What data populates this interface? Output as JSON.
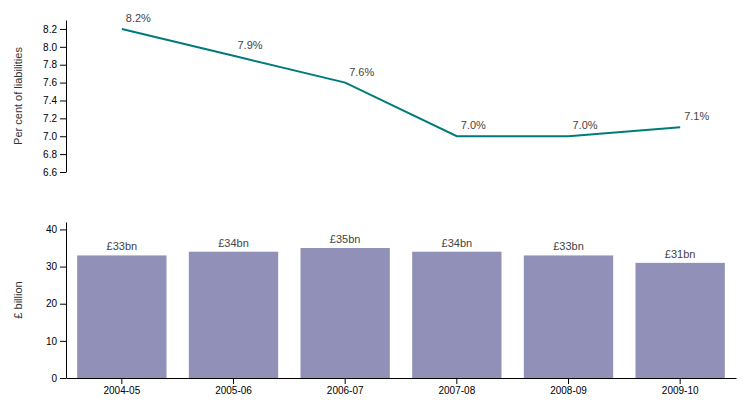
{
  "chart_data": [
    {
      "type": "line",
      "categories": [
        "2004-05",
        "2005-06",
        "2006-07",
        "2007-08",
        "2008-09",
        "2009-10"
      ],
      "values": [
        8.2,
        7.9,
        7.6,
        7.0,
        7.0,
        7.1
      ],
      "value_labels": [
        "8.2%",
        "7.9%",
        "7.6%",
        "7.0%",
        "7.0%",
        "7.1%"
      ],
      "data_labels": true,
      "color": "#007b7b",
      "ylabel": "Per cent of liabilities",
      "ylim": [
        6.6,
        8.3
      ],
      "yticks": [
        6.6,
        6.8,
        {
          "value": 7.0,
          "label": "7.0"
        },
        7.2,
        7.4,
        7.6,
        7.8,
        {
          "value": 8.0,
          "label": "8.0"
        },
        8.2
      ],
      "tick_labels": "y",
      "grid": false
    },
    {
      "type": "bar",
      "categories": [
        "2004-05",
        "2005-06",
        "2006-07",
        "2007-08",
        "2008-09",
        "2009-10"
      ],
      "values": [
        33,
        34,
        35,
        34,
        33,
        31
      ],
      "value_labels": [
        "£33bn",
        "£34bn",
        "£35bn",
        "£34bn",
        "£33bn",
        "£31bn"
      ],
      "data_labels": true,
      "color": "#9090b8",
      "ylabel": "£ billion",
      "ylim": [
        0,
        42
      ],
      "yticks": [
        0,
        10,
        20,
        30,
        40
      ],
      "grid": false
    }
  ]
}
